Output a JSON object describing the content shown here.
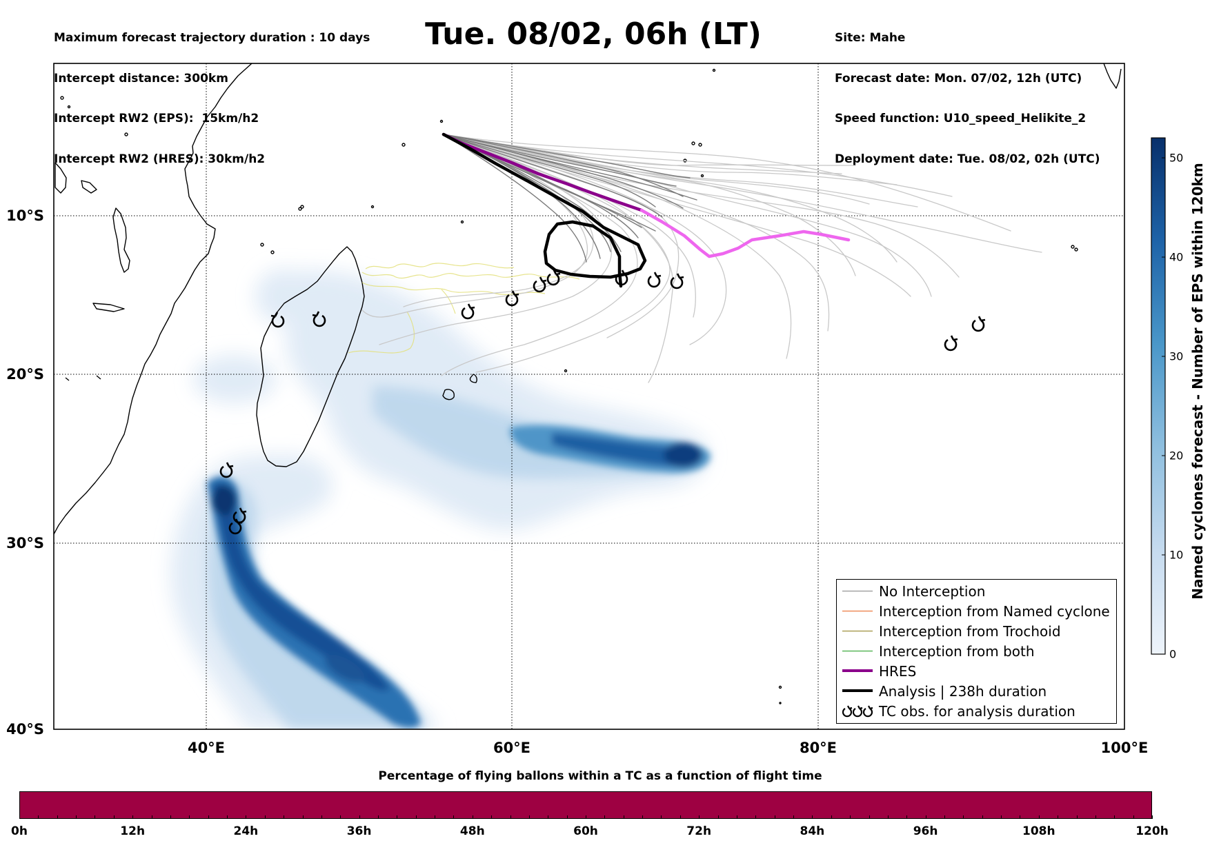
{
  "header": {
    "left": [
      "Maximum forecast trajectory duration : 10 days",
      "Intercept distance: 300km",
      "Intercept RW2 (EPS):  15km/h2",
      "Intercept RW2 (HRES): 30km/h2"
    ],
    "title": "Tue. 08/02, 06h (LT)",
    "right": [
      "Site: Mahe",
      "Forecast date: Mon. 07/02, 12h (UTC)",
      "Speed function: U10_speed_Helikite_2",
      "Deployment date: Tue. 08/02, 02h (UTC)"
    ]
  },
  "map": {
    "lon_range": [
      30,
      100
    ],
    "lat_range": [
      -40,
      0
    ],
    "lat_gridlines": [
      -10,
      -20,
      -30,
      -40
    ],
    "lat_labels": [
      "10°S",
      "20°S",
      "30°S",
      "40°S"
    ],
    "lon_gridlines": [
      40,
      60,
      80,
      100
    ],
    "lon_labels": [
      "40°E",
      "60°E",
      "80°E",
      "100°E"
    ],
    "grid": true
  },
  "colorbar": {
    "title": "Named cyclones forecast - Number of EPS within 120km",
    "min": 0,
    "max": 52,
    "ticks": [
      "0",
      "10",
      "20",
      "30",
      "40",
      "50"
    ],
    "tick_values": [
      0,
      10,
      20,
      30,
      40,
      50
    ],
    "colors": [
      "#e6eff9",
      "#c7dcef",
      "#a0cae1",
      "#6baed6",
      "#3c8ac2",
      "#1f66ad",
      "#0b4a92",
      "#08306b"
    ]
  },
  "legend": {
    "items": [
      {
        "label": "No Interception",
        "color": "#808080",
        "style": "thin"
      },
      {
        "label": "Interception from Named cyclone",
        "color": "#e8601c",
        "style": "thin"
      },
      {
        "label": "Interception from Trochoid",
        "color": "#8b7a16",
        "style": "thin"
      },
      {
        "label": "Interception from both",
        "color": "#1a9a1a",
        "style": "thin"
      },
      {
        "label": "HRES",
        "color": "#8b008b",
        "style": "thick"
      },
      {
        "label": "Analysis | 238h duration",
        "color": "#000000",
        "style": "thick"
      },
      {
        "label": "TC obs. for analysis duration",
        "color": "#000000",
        "style": "symbol"
      }
    ]
  },
  "timebar": {
    "title": "Percentage of flying ballons within a TC as a function of flight time",
    "color": "#9e0142",
    "ticks": [
      "0h",
      "12h",
      "24h",
      "36h",
      "48h",
      "60h",
      "72h",
      "84h",
      "96h",
      "108h",
      "120h"
    ]
  },
  "site": {
    "name": "Mahe",
    "lon": 55.45,
    "lat": -4.6
  },
  "hres_track": [
    [
      55.5,
      -4.6
    ],
    [
      57.4,
      -5.6
    ],
    [
      60.3,
      -6.9
    ],
    [
      63.4,
      -8.2
    ],
    [
      66.1,
      -9.3
    ],
    [
      68.0,
      -10.0
    ],
    [
      70.1,
      -10.8
    ],
    [
      71.5,
      -11.8
    ],
    [
      72.6,
      -12.5
    ],
    [
      73.8,
      -12.2
    ],
    [
      75.5,
      -11.5
    ],
    [
      78.0,
      -11.1
    ],
    [
      80.0,
      -11.2
    ],
    [
      81.8,
      -11.5
    ]
  ],
  "analysis_track": [
    [
      55.5,
      -4.6
    ],
    [
      57.0,
      -5.6
    ],
    [
      59.0,
      -6.7
    ],
    [
      61.5,
      -7.8
    ],
    [
      64.0,
      -9.0
    ],
    [
      66.0,
      -10.0
    ],
    [
      67.6,
      -11.2
    ],
    [
      68.5,
      -12.3
    ],
    [
      68.8,
      -13.2
    ],
    [
      68.0,
      -13.7
    ],
    [
      67.0,
      -14.0
    ],
    [
      65.7,
      -13.9
    ],
    [
      64.5,
      -13.7
    ],
    [
      63.3,
      -13.2
    ],
    [
      62.4,
      -12.4
    ],
    [
      62.2,
      -11.4
    ],
    [
      62.8,
      -10.6
    ],
    [
      64.0,
      -10.4
    ],
    [
      65.5,
      -10.6
    ],
    [
      66.8,
      -11.4
    ],
    [
      67.3,
      -12.5
    ],
    [
      67.1,
      -13.5
    ],
    [
      67.0,
      -14.5
    ]
  ],
  "tc_obs": [
    [
      45.0,
      -17.2
    ],
    [
      47.5,
      -17.1
    ],
    [
      57.3,
      -16.6
    ],
    [
      60.0,
      -15.7
    ],
    [
      61.8,
      -14.7
    ],
    [
      62.8,
      -14.3
    ],
    [
      67.2,
      -14.2
    ],
    [
      69.3,
      -14.4
    ],
    [
      70.8,
      -14.5
    ],
    [
      89.0,
      -18.5
    ],
    [
      90.8,
      -17.3
    ],
    [
      41.3,
      -26.2
    ],
    [
      42.2,
      -28.9
    ],
    [
      41.9,
      -29.6
    ]
  ]
}
